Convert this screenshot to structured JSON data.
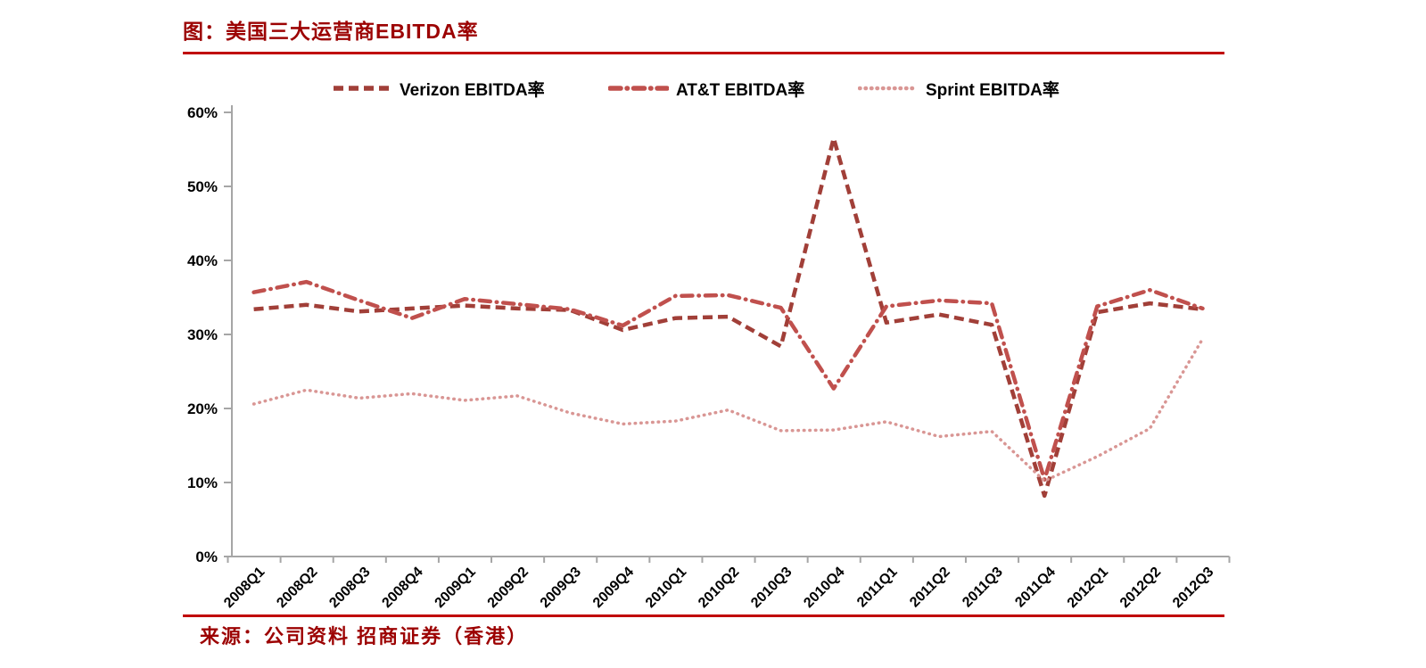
{
  "title": "图：美国三大运营商EBITDA率",
  "source": "来源：公司资料 招商证券（香港）",
  "colors": {
    "accent_rule": "#C00000",
    "title_text": "#9C0202",
    "axis": "#A6A6A6",
    "verizon": "#A13F38",
    "att": "#C0504D",
    "sprint": "#D99694"
  },
  "chart_data": {
    "type": "line",
    "title": "图：美国三大运营商EBITDA率",
    "xlabel": "",
    "ylabel": "",
    "ylim": [
      0,
      60
    ],
    "ytick_step": 10,
    "ytick_suffix": "%",
    "grid": false,
    "legend_position": "top",
    "categories": [
      "2008Q1",
      "2008Q2",
      "2008Q3",
      "2008Q4",
      "2009Q1",
      "2009Q2",
      "2009Q3",
      "2009Q4",
      "2010Q1",
      "2010Q2",
      "2010Q3",
      "2010Q4",
      "2011Q1",
      "2011Q2",
      "2011Q3",
      "2011Q4",
      "2012Q1",
      "2012Q2",
      "2012Q3"
    ],
    "series": [
      {
        "name": "Verizon EBITDA率",
        "color": "#A13F38",
        "dash": "11 6",
        "linecap": "butt",
        "width": 4.5,
        "values": [
          33.4,
          34.0,
          33.1,
          33.5,
          33.9,
          33.5,
          33.3,
          30.6,
          32.2,
          32.4,
          28.4,
          56.5,
          31.6,
          32.7,
          31.3,
          8.2,
          33.0,
          34.2,
          33.4
        ]
      },
      {
        "name": "AT&T EBITDA率",
        "color": "#C0504D",
        "dash": "12 7 0.5 7",
        "linecap": "round",
        "width": 4.5,
        "values": [
          35.7,
          37.1,
          34.6,
          32.2,
          34.8,
          34.1,
          33.4,
          31.2,
          35.2,
          35.3,
          33.6,
          22.7,
          33.8,
          34.6,
          34.2,
          10.4,
          33.8,
          36.0,
          33.5
        ]
      },
      {
        "name": "Sprint EBITDA率",
        "color": "#D99694",
        "dash": "0.5 6",
        "linecap": "round",
        "width": 3.5,
        "values": [
          20.6,
          22.5,
          21.4,
          22.0,
          21.1,
          21.7,
          19.4,
          17.9,
          18.3,
          19.8,
          17.0,
          17.1,
          18.2,
          16.2,
          16.9,
          10.2,
          13.5,
          17.3,
          29.4
        ]
      }
    ]
  }
}
